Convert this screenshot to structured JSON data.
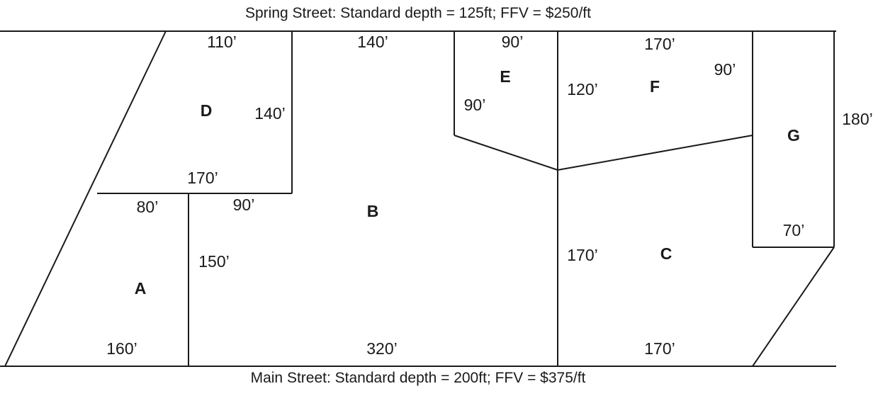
{
  "streets": {
    "top": "Spring Street: Standard depth = 125ft; FFV = $250/ft",
    "bottom": "Main Street: Standard depth = 200ft; FFV = $375/ft"
  },
  "lots": {
    "a": "A",
    "b": "B",
    "c": "C",
    "d": "D",
    "e": "E",
    "f": "F",
    "g": "G"
  },
  "dimensions": {
    "d_top": "110’",
    "d_right": "140’",
    "d_bottom": "170’",
    "b_top": "140’",
    "b_left_upper": "90’",
    "b_left_lower": "150’",
    "b_bottom": "320’",
    "a_top": "80’",
    "a_bottom": "160’",
    "e_top": "90’",
    "e_left": "90’",
    "f_left": "120’",
    "f_top": "170’",
    "f_right": "90’",
    "g_right": "180’",
    "g_bottom": "70’",
    "c_left": "170’",
    "c_bottom": "170’"
  }
}
